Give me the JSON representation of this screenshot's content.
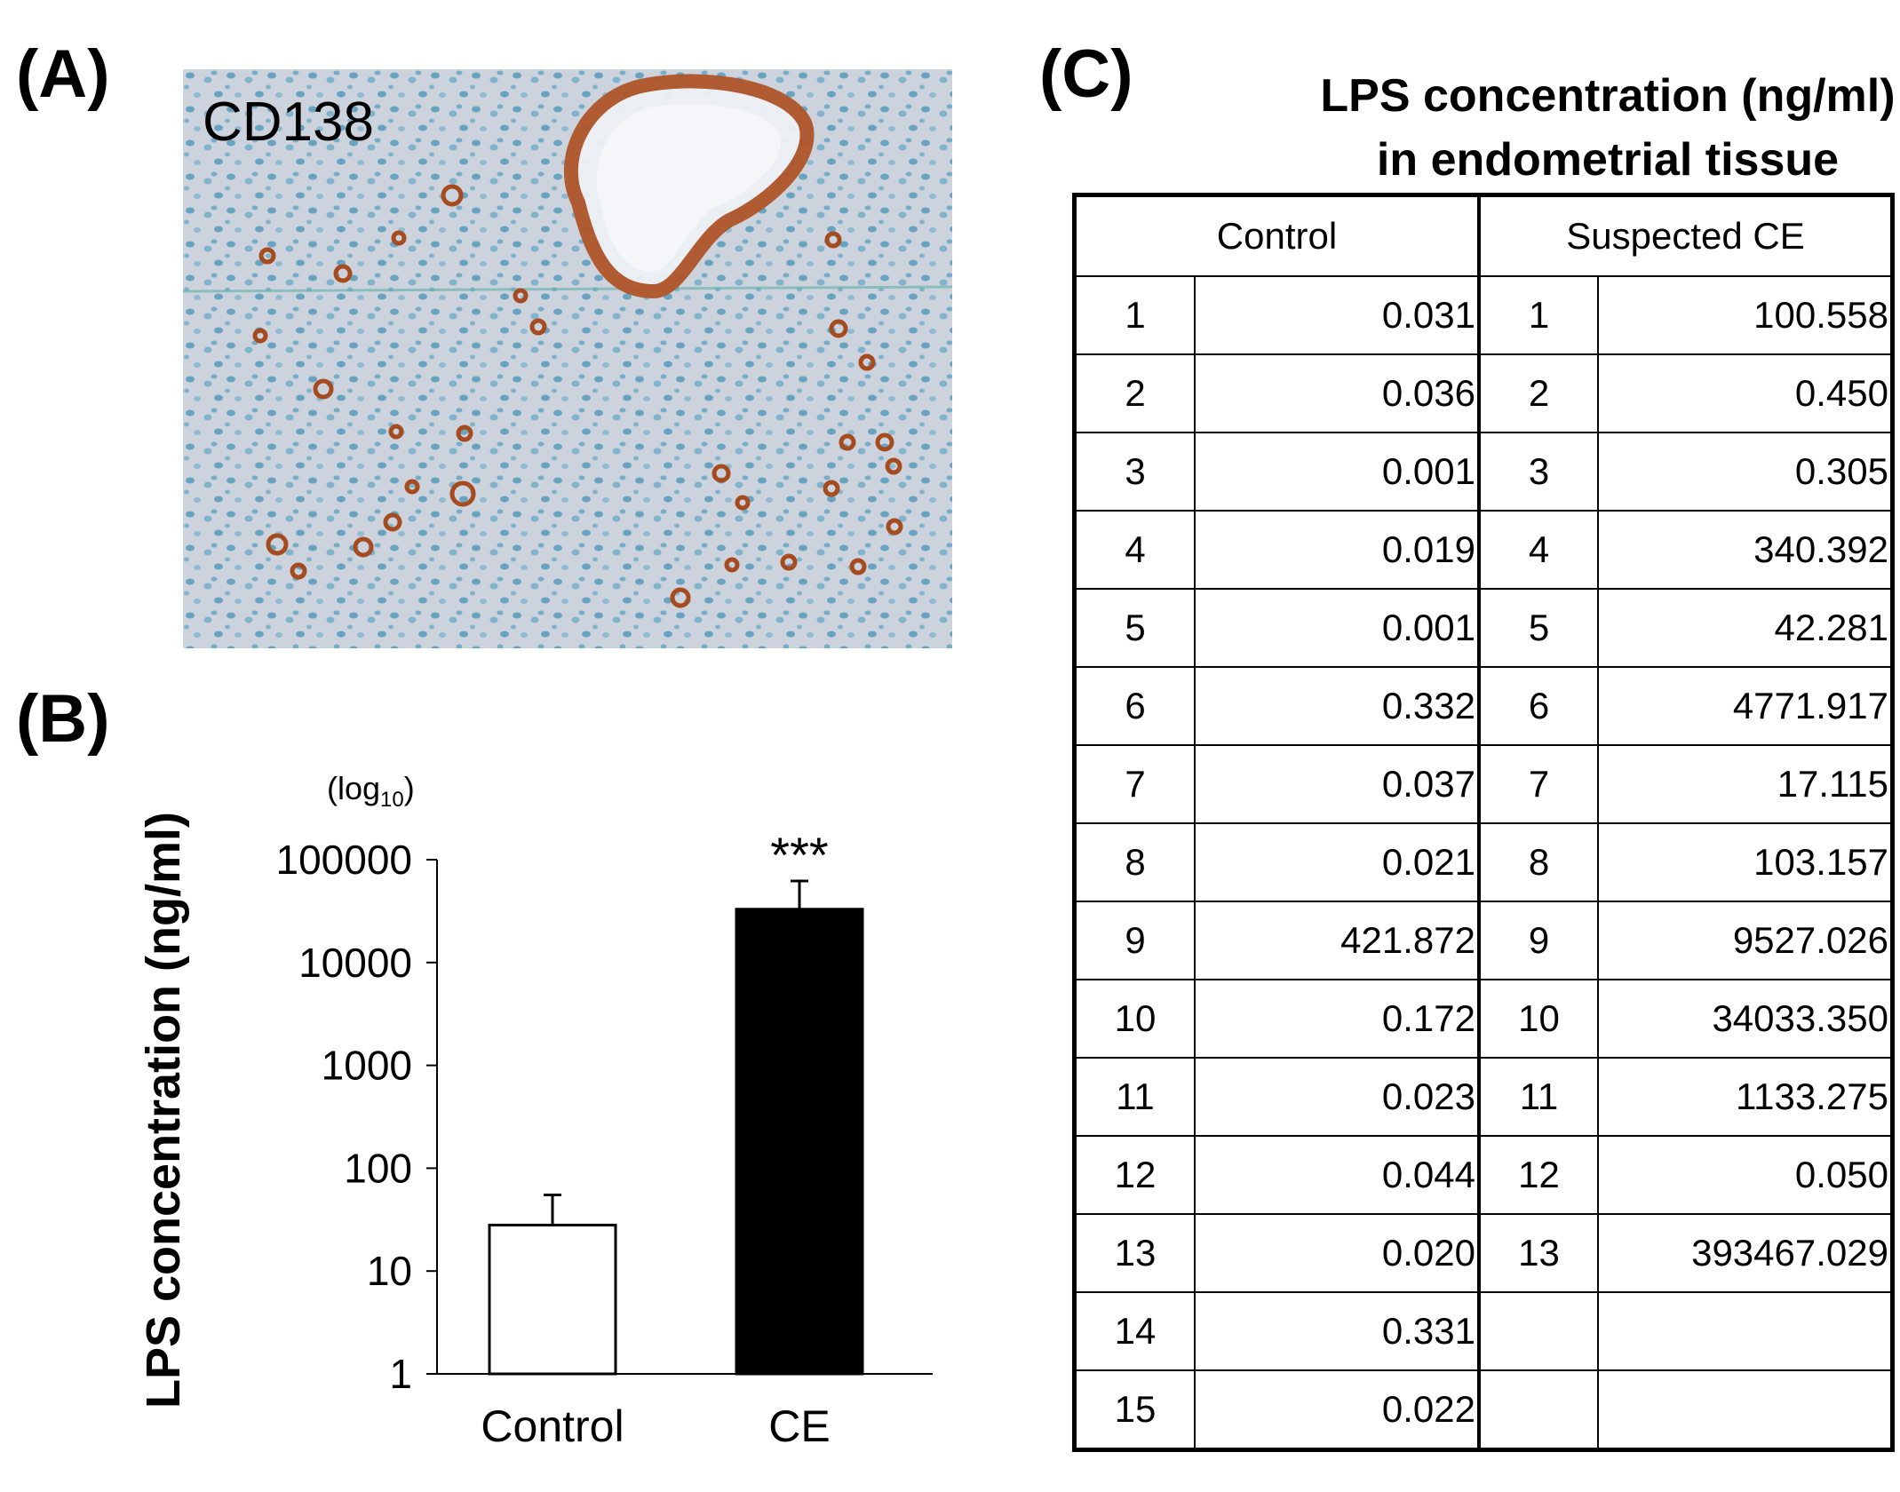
{
  "panels": {
    "a": "(A)",
    "b": "(B)",
    "c": "(C)"
  },
  "panel_a": {
    "stain_label": "CD138"
  },
  "panel_c": {
    "title_line1": "LPS concentration (ng/ml)",
    "title_line2": "in endometrial  tissue",
    "headers": [
      "Control",
      "Suspected CE"
    ],
    "rows": [
      {
        "c_id": "1",
        "c_val": "0.031",
        "s_id": "1",
        "s_val": "100.558"
      },
      {
        "c_id": "2",
        "c_val": "0.036",
        "s_id": "2",
        "s_val": "0.450"
      },
      {
        "c_id": "3",
        "c_val": "0.001",
        "s_id": "3",
        "s_val": "0.305"
      },
      {
        "c_id": "4",
        "c_val": "0.019",
        "s_id": "4",
        "s_val": "340.392"
      },
      {
        "c_id": "5",
        "c_val": "0.001",
        "s_id": "5",
        "s_val": "42.281"
      },
      {
        "c_id": "6",
        "c_val": "0.332",
        "s_id": "6",
        "s_val": "4771.917"
      },
      {
        "c_id": "7",
        "c_val": "0.037",
        "s_id": "7",
        "s_val": "17.115"
      },
      {
        "c_id": "8",
        "c_val": "0.021",
        "s_id": "8",
        "s_val": "103.157"
      },
      {
        "c_id": "9",
        "c_val": "421.872",
        "s_id": "9",
        "s_val": "9527.026"
      },
      {
        "c_id": "10",
        "c_val": "0.172",
        "s_id": "10",
        "s_val": "34033.350"
      },
      {
        "c_id": "11",
        "c_val": "0.023",
        "s_id": "11",
        "s_val": "1133.275"
      },
      {
        "c_id": "12",
        "c_val": "0.044",
        "s_id": "12",
        "s_val": "0.050"
      },
      {
        "c_id": "13",
        "c_val": "0.020",
        "s_id": "13",
        "s_val": "393467.029"
      },
      {
        "c_id": "14",
        "c_val": "0.331",
        "s_id": "",
        "s_val": ""
      },
      {
        "c_id": "15",
        "c_val": "0.022",
        "s_id": "",
        "s_val": ""
      }
    ]
  },
  "chart_data": {
    "type": "bar",
    "categories": [
      "Control",
      "CE"
    ],
    "values": [
      28,
      33000
    ],
    "error_upper": [
      55,
      62000
    ],
    "bar_colors": [
      "#ffffff",
      "#000000"
    ],
    "scale": "log",
    "ylim": [
      1,
      100000
    ],
    "yticks": [
      "1",
      "10",
      "100",
      "1000",
      "10000",
      "100000"
    ],
    "ylabel": "LPS concentration (ng/ml)",
    "scale_note": "(log",
    "scale_note_sub": "10",
    "scale_note_end": ")",
    "significance": [
      "",
      "***"
    ]
  }
}
